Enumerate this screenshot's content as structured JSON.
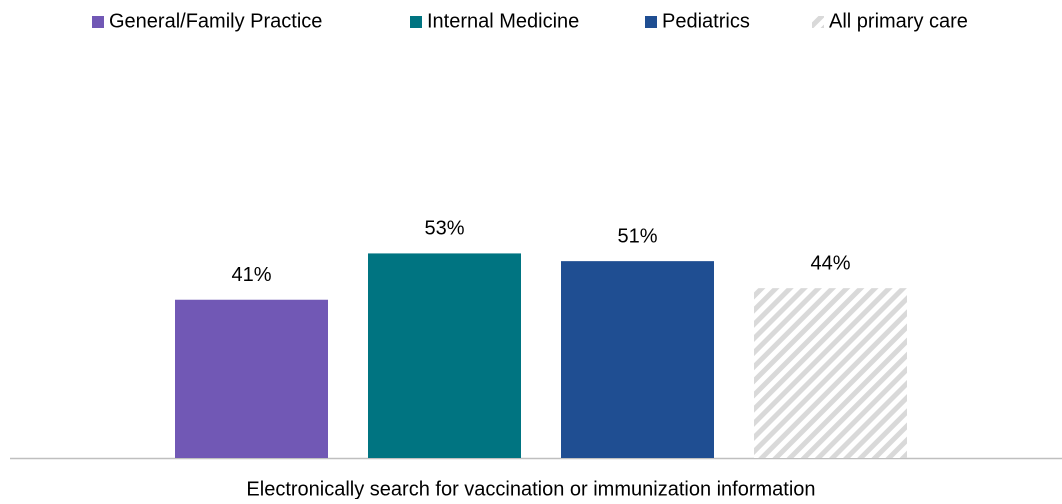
{
  "chart_data": {
    "type": "bar",
    "categories": [
      "Electronically search for vaccination or immunization information"
    ],
    "series": [
      {
        "name": "General/Family Practice",
        "color": "#7158b5",
        "values": [
          41
        ],
        "value_labels": [
          "41%"
        ]
      },
      {
        "name": "Internal Medicine",
        "color": "#007481",
        "values": [
          53
        ],
        "value_labels": [
          "53%"
        ]
      },
      {
        "name": "Pediatrics",
        "color": "#1f4e92",
        "values": [
          51
        ],
        "value_labels": [
          "51%"
        ]
      },
      {
        "name": "All primary care",
        "color": "#d9d9d9",
        "pattern": "hatch",
        "values": [
          44
        ],
        "value_labels": [
          "44%"
        ]
      }
    ],
    "legend": "top"
  }
}
